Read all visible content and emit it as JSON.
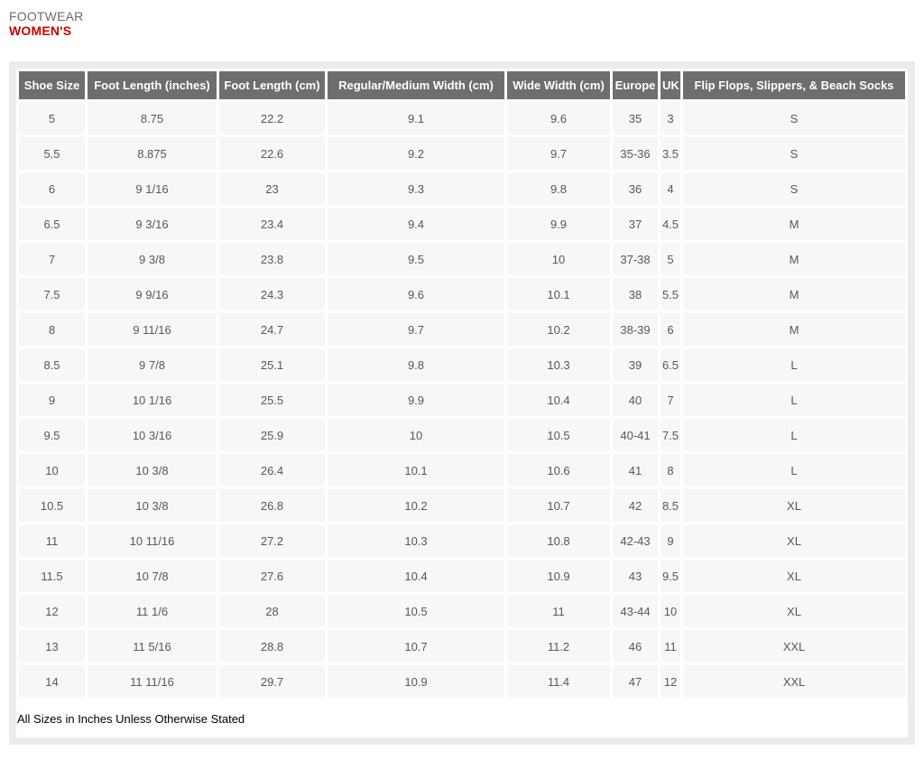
{
  "page": {
    "category": "FOOTWEAR",
    "title": "WOMEN'S",
    "footnote": "All Sizes in Inches Unless Otherwise Stated"
  },
  "colors": {
    "accent_red": "#cb0000",
    "table_header_bg": "#6e6e6e",
    "row_bg": "#f7f7f7",
    "panel_border": "#ececec"
  },
  "table": {
    "headers": [
      "Shoe Size",
      "Foot Length (inches)",
      "Foot Length (cm)",
      "Regular/Medium Width (cm)",
      "Wide Width (cm)",
      "Europe",
      "UK",
      "Flip Flops, Slippers, & Beach Socks"
    ],
    "rows": [
      [
        "5",
        "8.75",
        "22.2",
        "9.1",
        "9.6",
        "35",
        "3",
        "S"
      ],
      [
        "5.5",
        "8.875",
        "22.6",
        "9.2",
        "9.7",
        "35-36",
        "3.5",
        "S"
      ],
      [
        "6",
        "9 1/16",
        "23",
        "9.3",
        "9.8",
        "36",
        "4",
        "S"
      ],
      [
        "6.5",
        "9 3/16",
        "23.4",
        "9.4",
        "9.9",
        "37",
        "4.5",
        "M"
      ],
      [
        "7",
        "9 3/8",
        "23.8",
        "9.5",
        "10",
        "37-38",
        "5",
        "M"
      ],
      [
        "7.5",
        "9 9/16",
        "24.3",
        "9.6",
        "10.1",
        "38",
        "5.5",
        "M"
      ],
      [
        "8",
        "9 11/16",
        "24.7",
        "9.7",
        "10.2",
        "38-39",
        "6",
        "M"
      ],
      [
        "8.5",
        "9 7/8",
        "25.1",
        "9.8",
        "10.3",
        "39",
        "6.5",
        "L"
      ],
      [
        "9",
        "10 1/16",
        "25.5",
        "9.9",
        "10.4",
        "40",
        "7",
        "L"
      ],
      [
        "9.5",
        "10 3/16",
        "25.9",
        "10",
        "10.5",
        "40-41",
        "7.5",
        "L"
      ],
      [
        "10",
        "10 3/8",
        "26.4",
        "10.1",
        "10.6",
        "41",
        "8",
        "L"
      ],
      [
        "10.5",
        "10 3/8",
        "26.8",
        "10.2",
        "10.7",
        "42",
        "8.5",
        "XL"
      ],
      [
        "11",
        "10 11/16",
        "27.2",
        "10.3",
        "10.8",
        "42-43",
        "9",
        "XL"
      ],
      [
        "11.5",
        "10 7/8",
        "27.6",
        "10.4",
        "10.9",
        "43",
        "9.5",
        "XL"
      ],
      [
        "12",
        "11 1/6",
        "28",
        "10.5",
        "11",
        "43-44",
        "10",
        "XL"
      ],
      [
        "13",
        "11 5/16",
        "28.8",
        "10.7",
        "11.2",
        "46",
        "11",
        "XXL"
      ],
      [
        "14",
        "11 11/16",
        "29.7",
        "10.9",
        "11.4",
        "47",
        "12",
        "XXL"
      ]
    ]
  }
}
